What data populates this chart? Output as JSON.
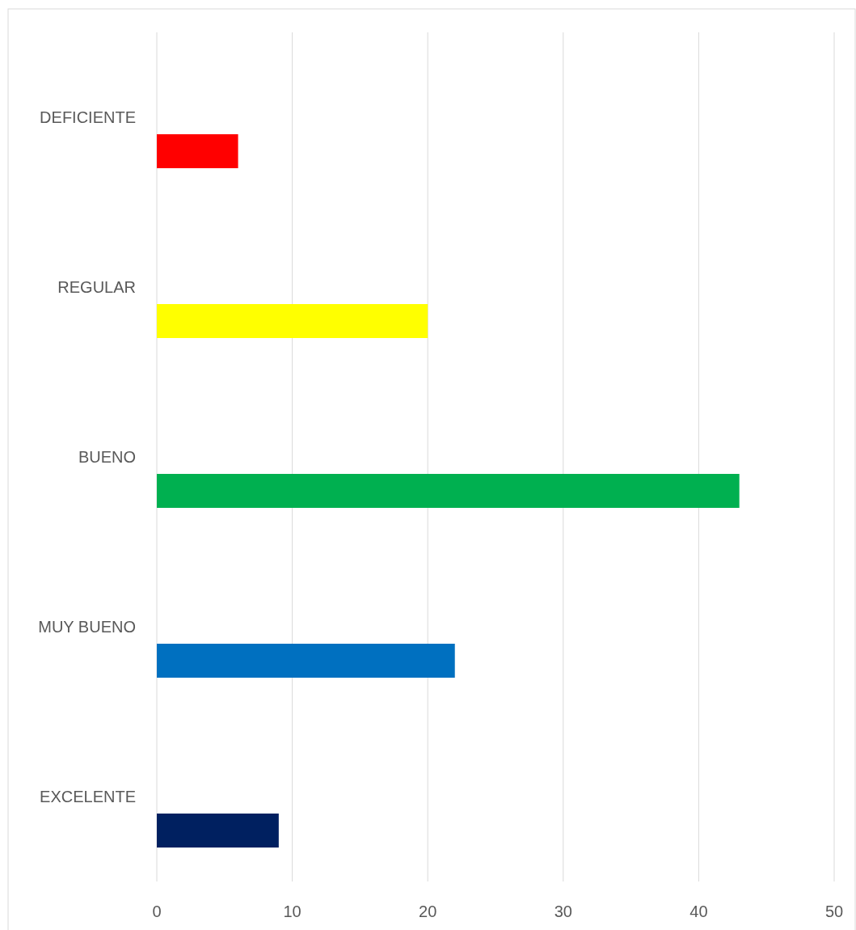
{
  "chart_data": {
    "type": "bar",
    "orientation": "horizontal",
    "categories": [
      "DEFICIENTE",
      "REGULAR",
      "BUENO",
      "MUY BUENO",
      "EXCELENTE"
    ],
    "values": [
      6,
      20,
      43,
      22,
      9
    ],
    "colors": [
      "#ff0000",
      "#ffff00",
      "#00b050",
      "#0070c0",
      "#002060"
    ],
    "xlim": [
      0,
      50
    ],
    "xticks": [
      0,
      10,
      20,
      30,
      40,
      50
    ],
    "grid": "x"
  }
}
